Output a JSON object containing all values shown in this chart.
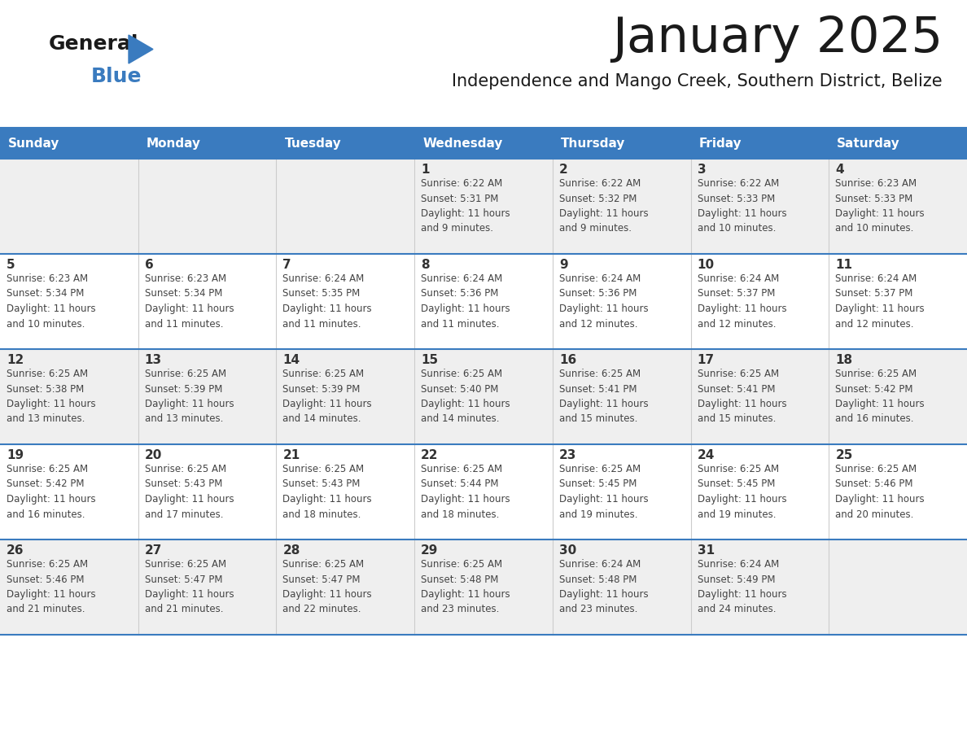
{
  "title": "January 2025",
  "subtitle": "Independence and Mango Creek, Southern District, Belize",
  "header_bg": "#3a7bbf",
  "header_text_color": "#ffffff",
  "weekdays": [
    "Sunday",
    "Monday",
    "Tuesday",
    "Wednesday",
    "Thursday",
    "Friday",
    "Saturday"
  ],
  "row_bg_even": "#efefef",
  "row_bg_odd": "#ffffff",
  "cell_border_color": "#3a7bbf",
  "day_number_color": "#333333",
  "info_text_color": "#444444",
  "title_color": "#1a1a1a",
  "subtitle_color": "#1a1a1a",
  "calendar": [
    [
      {
        "day": "",
        "info": ""
      },
      {
        "day": "",
        "info": ""
      },
      {
        "day": "",
        "info": ""
      },
      {
        "day": "1",
        "info": "Sunrise: 6:22 AM\nSunset: 5:31 PM\nDaylight: 11 hours\nand 9 minutes."
      },
      {
        "day": "2",
        "info": "Sunrise: 6:22 AM\nSunset: 5:32 PM\nDaylight: 11 hours\nand 9 minutes."
      },
      {
        "day": "3",
        "info": "Sunrise: 6:22 AM\nSunset: 5:33 PM\nDaylight: 11 hours\nand 10 minutes."
      },
      {
        "day": "4",
        "info": "Sunrise: 6:23 AM\nSunset: 5:33 PM\nDaylight: 11 hours\nand 10 minutes."
      }
    ],
    [
      {
        "day": "5",
        "info": "Sunrise: 6:23 AM\nSunset: 5:34 PM\nDaylight: 11 hours\nand 10 minutes."
      },
      {
        "day": "6",
        "info": "Sunrise: 6:23 AM\nSunset: 5:34 PM\nDaylight: 11 hours\nand 11 minutes."
      },
      {
        "day": "7",
        "info": "Sunrise: 6:24 AM\nSunset: 5:35 PM\nDaylight: 11 hours\nand 11 minutes."
      },
      {
        "day": "8",
        "info": "Sunrise: 6:24 AM\nSunset: 5:36 PM\nDaylight: 11 hours\nand 11 minutes."
      },
      {
        "day": "9",
        "info": "Sunrise: 6:24 AM\nSunset: 5:36 PM\nDaylight: 11 hours\nand 12 minutes."
      },
      {
        "day": "10",
        "info": "Sunrise: 6:24 AM\nSunset: 5:37 PM\nDaylight: 11 hours\nand 12 minutes."
      },
      {
        "day": "11",
        "info": "Sunrise: 6:24 AM\nSunset: 5:37 PM\nDaylight: 11 hours\nand 12 minutes."
      }
    ],
    [
      {
        "day": "12",
        "info": "Sunrise: 6:25 AM\nSunset: 5:38 PM\nDaylight: 11 hours\nand 13 minutes."
      },
      {
        "day": "13",
        "info": "Sunrise: 6:25 AM\nSunset: 5:39 PM\nDaylight: 11 hours\nand 13 minutes."
      },
      {
        "day": "14",
        "info": "Sunrise: 6:25 AM\nSunset: 5:39 PM\nDaylight: 11 hours\nand 14 minutes."
      },
      {
        "day": "15",
        "info": "Sunrise: 6:25 AM\nSunset: 5:40 PM\nDaylight: 11 hours\nand 14 minutes."
      },
      {
        "day": "16",
        "info": "Sunrise: 6:25 AM\nSunset: 5:41 PM\nDaylight: 11 hours\nand 15 minutes."
      },
      {
        "day": "17",
        "info": "Sunrise: 6:25 AM\nSunset: 5:41 PM\nDaylight: 11 hours\nand 15 minutes."
      },
      {
        "day": "18",
        "info": "Sunrise: 6:25 AM\nSunset: 5:42 PM\nDaylight: 11 hours\nand 16 minutes."
      }
    ],
    [
      {
        "day": "19",
        "info": "Sunrise: 6:25 AM\nSunset: 5:42 PM\nDaylight: 11 hours\nand 16 minutes."
      },
      {
        "day": "20",
        "info": "Sunrise: 6:25 AM\nSunset: 5:43 PM\nDaylight: 11 hours\nand 17 minutes."
      },
      {
        "day": "21",
        "info": "Sunrise: 6:25 AM\nSunset: 5:43 PM\nDaylight: 11 hours\nand 18 minutes."
      },
      {
        "day": "22",
        "info": "Sunrise: 6:25 AM\nSunset: 5:44 PM\nDaylight: 11 hours\nand 18 minutes."
      },
      {
        "day": "23",
        "info": "Sunrise: 6:25 AM\nSunset: 5:45 PM\nDaylight: 11 hours\nand 19 minutes."
      },
      {
        "day": "24",
        "info": "Sunrise: 6:25 AM\nSunset: 5:45 PM\nDaylight: 11 hours\nand 19 minutes."
      },
      {
        "day": "25",
        "info": "Sunrise: 6:25 AM\nSunset: 5:46 PM\nDaylight: 11 hours\nand 20 minutes."
      }
    ],
    [
      {
        "day": "26",
        "info": "Sunrise: 6:25 AM\nSunset: 5:46 PM\nDaylight: 11 hours\nand 21 minutes."
      },
      {
        "day": "27",
        "info": "Sunrise: 6:25 AM\nSunset: 5:47 PM\nDaylight: 11 hours\nand 21 minutes."
      },
      {
        "day": "28",
        "info": "Sunrise: 6:25 AM\nSunset: 5:47 PM\nDaylight: 11 hours\nand 22 minutes."
      },
      {
        "day": "29",
        "info": "Sunrise: 6:25 AM\nSunset: 5:48 PM\nDaylight: 11 hours\nand 23 minutes."
      },
      {
        "day": "30",
        "info": "Sunrise: 6:24 AM\nSunset: 5:48 PM\nDaylight: 11 hours\nand 23 minutes."
      },
      {
        "day": "31",
        "info": "Sunrise: 6:24 AM\nSunset: 5:49 PM\nDaylight: 11 hours\nand 24 minutes."
      },
      {
        "day": "",
        "info": ""
      }
    ]
  ],
  "logo_general_color": "#1a1a1a",
  "logo_blue_color": "#3a7bbf"
}
